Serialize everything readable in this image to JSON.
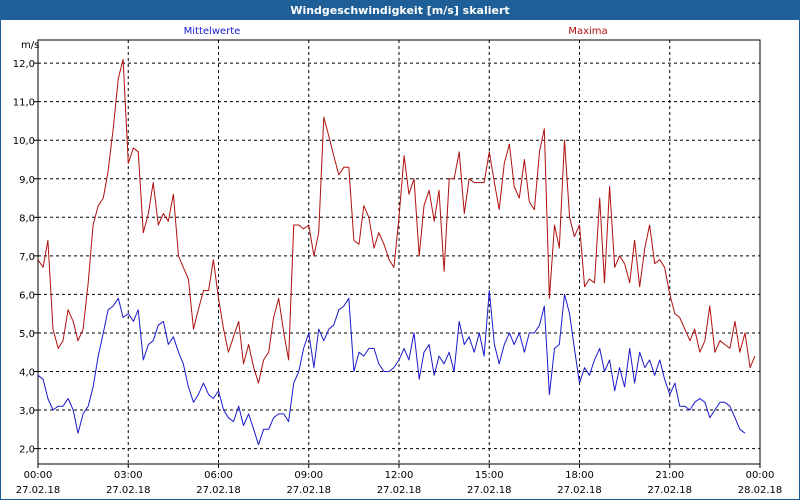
{
  "window": {
    "title": "Windgeschwindigkeit [m/s] skaliert"
  },
  "colors": {
    "titlebar": "#1e5f98",
    "mean": "#1a1acc",
    "max": "#b01010",
    "grid": "#000000"
  },
  "chart_data": {
    "type": "line",
    "title": "Windgeschwindigkeit [m/s] skaliert",
    "ylabel": "m/s",
    "xlabel": "",
    "ylim": [
      1.6,
      12.6
    ],
    "xlim": [
      0,
      24
    ],
    "grid": true,
    "legend_placement": "top",
    "y_ticks": [
      "2,0",
      "3,0",
      "4,0",
      "5,0",
      "6,0",
      "7,0",
      "8,0",
      "9,0",
      "10,0",
      "11,0",
      "12,0"
    ],
    "x_ticks": [
      {
        "time": "00:00",
        "date": "27.02.18"
      },
      {
        "time": "03:00",
        "date": "27.02.18"
      },
      {
        "time": "06:00",
        "date": "27.02.18"
      },
      {
        "time": "09:00",
        "date": "27.02.18"
      },
      {
        "time": "12:00",
        "date": "27.02.18"
      },
      {
        "time": "15:00",
        "date": "27.02.18"
      },
      {
        "time": "18:00",
        "date": "27.02.18"
      },
      {
        "time": "21:00",
        "date": "27.02.18"
      },
      {
        "time": "00:00",
        "date": "28.02.18"
      }
    ],
    "series": [
      {
        "name": "Mittelwerte",
        "color": "#1a1acc",
        "points": [
          [
            0.0,
            3.9
          ],
          [
            0.17,
            3.8
          ],
          [
            0.33,
            3.3
          ],
          [
            0.5,
            3.0
          ],
          [
            0.67,
            3.1
          ],
          [
            0.83,
            3.1
          ],
          [
            1.0,
            3.3
          ],
          [
            1.17,
            3.0
          ],
          [
            1.33,
            2.4
          ],
          [
            1.5,
            2.9
          ],
          [
            1.67,
            3.1
          ],
          [
            1.83,
            3.6
          ],
          [
            2.0,
            4.4
          ],
          [
            2.17,
            5.0
          ],
          [
            2.33,
            5.6
          ],
          [
            2.5,
            5.7
          ],
          [
            2.67,
            5.9
          ],
          [
            2.83,
            5.4
          ],
          [
            3.0,
            5.5
          ],
          [
            3.17,
            5.3
          ],
          [
            3.33,
            5.6
          ],
          [
            3.5,
            4.3
          ],
          [
            3.67,
            4.7
          ],
          [
            3.83,
            4.8
          ],
          [
            4.0,
            5.2
          ],
          [
            4.17,
            5.3
          ],
          [
            4.33,
            4.7
          ],
          [
            4.5,
            4.9
          ],
          [
            4.67,
            4.5
          ],
          [
            4.83,
            4.2
          ],
          [
            5.0,
            3.6
          ],
          [
            5.17,
            3.2
          ],
          [
            5.33,
            3.4
          ],
          [
            5.5,
            3.7
          ],
          [
            5.67,
            3.4
          ],
          [
            5.83,
            3.3
          ],
          [
            6.0,
            3.5
          ],
          [
            6.17,
            3.0
          ],
          [
            6.33,
            2.8
          ],
          [
            6.5,
            2.7
          ],
          [
            6.67,
            3.1
          ],
          [
            6.83,
            2.6
          ],
          [
            7.0,
            2.9
          ],
          [
            7.17,
            2.5
          ],
          [
            7.33,
            2.1
          ],
          [
            7.5,
            2.5
          ],
          [
            7.67,
            2.5
          ],
          [
            7.83,
            2.8
          ],
          [
            8.0,
            2.9
          ],
          [
            8.17,
            2.9
          ],
          [
            8.33,
            2.7
          ],
          [
            8.5,
            3.7
          ],
          [
            8.67,
            4.0
          ],
          [
            8.83,
            4.6
          ],
          [
            9.0,
            5.0
          ],
          [
            9.17,
            4.1
          ],
          [
            9.33,
            5.1
          ],
          [
            9.5,
            4.8
          ],
          [
            9.67,
            5.1
          ],
          [
            9.83,
            5.2
          ],
          [
            10.0,
            5.6
          ],
          [
            10.17,
            5.7
          ],
          [
            10.33,
            5.9
          ],
          [
            10.5,
            4.0
          ],
          [
            10.67,
            4.5
          ],
          [
            10.83,
            4.4
          ],
          [
            11.0,
            4.6
          ],
          [
            11.17,
            4.6
          ],
          [
            11.33,
            4.2
          ],
          [
            11.5,
            4.0
          ],
          [
            11.67,
            4.0
          ],
          [
            11.83,
            4.1
          ],
          [
            12.0,
            4.3
          ],
          [
            12.17,
            4.6
          ],
          [
            12.33,
            4.3
          ],
          [
            12.5,
            5.0
          ],
          [
            12.67,
            3.8
          ],
          [
            12.83,
            4.5
          ],
          [
            13.0,
            4.7
          ],
          [
            13.17,
            3.9
          ],
          [
            13.33,
            4.4
          ],
          [
            13.5,
            4.2
          ],
          [
            13.67,
            4.5
          ],
          [
            13.83,
            4.0
          ],
          [
            14.0,
            5.3
          ],
          [
            14.17,
            4.7
          ],
          [
            14.33,
            4.9
          ],
          [
            14.5,
            4.5
          ],
          [
            14.67,
            5.0
          ],
          [
            14.83,
            4.4
          ],
          [
            15.0,
            6.1
          ],
          [
            15.17,
            4.7
          ],
          [
            15.33,
            4.2
          ],
          [
            15.5,
            4.7
          ],
          [
            15.67,
            5.0
          ],
          [
            15.83,
            4.7
          ],
          [
            16.0,
            5.0
          ],
          [
            16.17,
            4.5
          ],
          [
            16.33,
            5.0
          ],
          [
            16.5,
            5.0
          ],
          [
            16.67,
            5.2
          ],
          [
            16.83,
            5.7
          ],
          [
            17.0,
            3.4
          ],
          [
            17.17,
            4.6
          ],
          [
            17.33,
            4.7
          ],
          [
            17.5,
            6.0
          ],
          [
            17.67,
            5.5
          ],
          [
            17.83,
            4.6
          ],
          [
            18.0,
            3.7
          ],
          [
            18.17,
            4.1
          ],
          [
            18.33,
            3.9
          ],
          [
            18.5,
            4.3
          ],
          [
            18.67,
            4.6
          ],
          [
            18.83,
            4.0
          ],
          [
            19.0,
            4.3
          ],
          [
            19.17,
            3.5
          ],
          [
            19.33,
            4.1
          ],
          [
            19.5,
            3.6
          ],
          [
            19.67,
            4.6
          ],
          [
            19.83,
            3.7
          ],
          [
            20.0,
            4.5
          ],
          [
            20.17,
            4.1
          ],
          [
            20.33,
            4.3
          ],
          [
            20.5,
            3.9
          ],
          [
            20.67,
            4.3
          ],
          [
            20.83,
            3.8
          ],
          [
            21.0,
            3.4
          ],
          [
            21.17,
            3.7
          ],
          [
            21.33,
            3.1
          ],
          [
            21.5,
            3.1
          ],
          [
            21.67,
            3.0
          ],
          [
            21.83,
            3.2
          ],
          [
            22.0,
            3.3
          ],
          [
            22.17,
            3.2
          ],
          [
            22.33,
            2.8
          ],
          [
            22.5,
            3.0
          ],
          [
            22.67,
            3.2
          ],
          [
            22.83,
            3.2
          ],
          [
            23.0,
            3.1
          ],
          [
            23.17,
            2.8
          ],
          [
            23.33,
            2.5
          ],
          [
            23.5,
            2.4
          ]
        ]
      },
      {
        "name": "Maxima",
        "color": "#b01010",
        "points": [
          [
            0.0,
            6.9
          ],
          [
            0.17,
            6.7
          ],
          [
            0.33,
            7.4
          ],
          [
            0.5,
            5.1
          ],
          [
            0.67,
            4.6
          ],
          [
            0.83,
            4.8
          ],
          [
            1.0,
            5.6
          ],
          [
            1.17,
            5.3
          ],
          [
            1.33,
            4.8
          ],
          [
            1.5,
            5.1
          ],
          [
            1.67,
            6.3
          ],
          [
            1.83,
            7.8
          ],
          [
            2.0,
            8.3
          ],
          [
            2.17,
            8.5
          ],
          [
            2.33,
            9.2
          ],
          [
            2.5,
            10.3
          ],
          [
            2.67,
            11.6
          ],
          [
            2.83,
            12.1
          ],
          [
            3.0,
            9.4
          ],
          [
            3.17,
            9.8
          ],
          [
            3.33,
            9.7
          ],
          [
            3.5,
            7.6
          ],
          [
            3.67,
            8.1
          ],
          [
            3.83,
            8.9
          ],
          [
            4.0,
            7.8
          ],
          [
            4.17,
            8.1
          ],
          [
            4.33,
            7.9
          ],
          [
            4.5,
            8.6
          ],
          [
            4.67,
            7.0
          ],
          [
            4.83,
            6.7
          ],
          [
            5.0,
            6.4
          ],
          [
            5.17,
            5.1
          ],
          [
            5.33,
            5.6
          ],
          [
            5.5,
            6.1
          ],
          [
            5.67,
            6.1
          ],
          [
            5.83,
            6.9
          ],
          [
            6.0,
            5.9
          ],
          [
            6.17,
            5.1
          ],
          [
            6.33,
            4.5
          ],
          [
            6.5,
            4.9
          ],
          [
            6.67,
            5.3
          ],
          [
            6.83,
            4.2
          ],
          [
            7.0,
            4.7
          ],
          [
            7.17,
            4.1
          ],
          [
            7.33,
            3.7
          ],
          [
            7.5,
            4.3
          ],
          [
            7.67,
            4.5
          ],
          [
            7.83,
            5.4
          ],
          [
            8.0,
            5.9
          ],
          [
            8.17,
            5.0
          ],
          [
            8.33,
            4.3
          ],
          [
            8.5,
            7.8
          ],
          [
            8.67,
            7.8
          ],
          [
            8.83,
            7.7
          ],
          [
            9.0,
            7.8
          ],
          [
            9.17,
            7.0
          ],
          [
            9.33,
            7.6
          ],
          [
            9.5,
            10.6
          ],
          [
            9.67,
            10.1
          ],
          [
            9.83,
            9.6
          ],
          [
            10.0,
            9.1
          ],
          [
            10.17,
            9.3
          ],
          [
            10.33,
            9.3
          ],
          [
            10.5,
            7.4
          ],
          [
            10.67,
            7.3
          ],
          [
            10.83,
            8.3
          ],
          [
            11.0,
            8.0
          ],
          [
            11.17,
            7.2
          ],
          [
            11.33,
            7.6
          ],
          [
            11.5,
            7.3
          ],
          [
            11.67,
            6.9
          ],
          [
            11.83,
            6.7
          ],
          [
            12.0,
            8.0
          ],
          [
            12.17,
            9.6
          ],
          [
            12.33,
            8.6
          ],
          [
            12.5,
            9.0
          ],
          [
            12.67,
            7.0
          ],
          [
            12.83,
            8.3
          ],
          [
            13.0,
            8.7
          ],
          [
            13.17,
            7.9
          ],
          [
            13.33,
            8.7
          ],
          [
            13.5,
            6.6
          ],
          [
            13.67,
            9.0
          ],
          [
            13.83,
            9.0
          ],
          [
            14.0,
            9.7
          ],
          [
            14.17,
            8.1
          ],
          [
            14.33,
            9.0
          ],
          [
            14.5,
            8.9
          ],
          [
            14.67,
            8.9
          ],
          [
            14.83,
            8.9
          ],
          [
            15.0,
            9.7
          ],
          [
            15.17,
            8.9
          ],
          [
            15.33,
            8.2
          ],
          [
            15.5,
            9.4
          ],
          [
            15.67,
            9.9
          ],
          [
            15.83,
            8.8
          ],
          [
            16.0,
            8.5
          ],
          [
            16.17,
            9.5
          ],
          [
            16.33,
            8.4
          ],
          [
            16.5,
            8.2
          ],
          [
            16.67,
            9.7
          ],
          [
            16.83,
            10.3
          ],
          [
            17.0,
            5.9
          ],
          [
            17.17,
            7.8
          ],
          [
            17.33,
            7.2
          ],
          [
            17.5,
            10.0
          ],
          [
            17.67,
            8.0
          ],
          [
            17.83,
            7.5
          ],
          [
            18.0,
            7.8
          ],
          [
            18.17,
            6.2
          ],
          [
            18.33,
            6.4
          ],
          [
            18.5,
            6.3
          ],
          [
            18.67,
            8.5
          ],
          [
            18.83,
            6.3
          ],
          [
            19.0,
            8.8
          ],
          [
            19.17,
            6.7
          ],
          [
            19.33,
            7.0
          ],
          [
            19.5,
            6.8
          ],
          [
            19.67,
            6.3
          ],
          [
            19.83,
            7.4
          ],
          [
            20.0,
            6.2
          ],
          [
            20.17,
            7.2
          ],
          [
            20.33,
            7.8
          ],
          [
            20.5,
            6.8
          ],
          [
            20.67,
            6.9
          ],
          [
            20.83,
            6.7
          ],
          [
            21.0,
            6.0
          ],
          [
            21.17,
            5.5
          ],
          [
            21.33,
            5.4
          ],
          [
            21.5,
            5.1
          ],
          [
            21.67,
            4.8
          ],
          [
            21.83,
            5.1
          ],
          [
            22.0,
            4.5
          ],
          [
            22.17,
            4.8
          ],
          [
            22.33,
            5.7
          ],
          [
            22.5,
            4.5
          ],
          [
            22.67,
            4.8
          ],
          [
            22.83,
            4.7
          ],
          [
            23.0,
            4.6
          ],
          [
            23.17,
            5.3
          ],
          [
            23.33,
            4.5
          ],
          [
            23.5,
            5.0
          ],
          [
            23.67,
            4.1
          ],
          [
            23.83,
            4.4
          ]
        ]
      }
    ]
  }
}
